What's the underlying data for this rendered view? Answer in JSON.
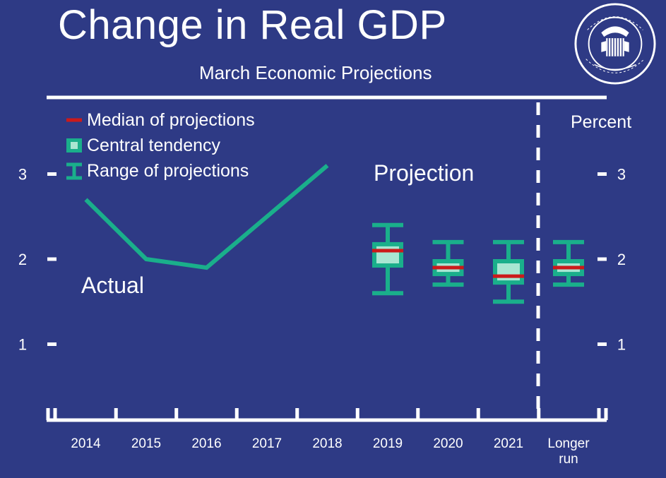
{
  "slide": {
    "title": "Change in Real GDP",
    "subtitle": "March Economic Projections",
    "seal_text": "UNITED STATES · FEDERAL RESERVE SYSTEM"
  },
  "colors": {
    "background": "#2e3a85",
    "teal": "#1aaf8b",
    "light_box": "#a9e6d2",
    "median": "#cc1a1a",
    "white": "#ffffff"
  },
  "chart_data": {
    "type": "line",
    "title": "Change in Real GDP",
    "subtitle": "March Economic Projections",
    "ylabel": "Percent",
    "ylim": [
      0.2,
      3.3
    ],
    "y_ticks": [
      1,
      2,
      3
    ],
    "categories": [
      "2014",
      "2015",
      "2016",
      "2017",
      "2018",
      "2019",
      "2020",
      "2021",
      "Longer run"
    ],
    "legend": [
      {
        "label": "Median of projections",
        "icon": "median-bar"
      },
      {
        "label": "Central tendency",
        "icon": "central-box"
      },
      {
        "label": "Range of projections",
        "icon": "range-bracket"
      }
    ],
    "annotations": {
      "actual": "Actual",
      "projection": "Projection"
    },
    "actual_series": {
      "x": [
        "2014",
        "2015",
        "2016",
        "2017",
        "2018"
      ],
      "values": [
        2.7,
        2.0,
        1.9,
        2.5,
        3.1
      ]
    },
    "projections": [
      {
        "category": "2019",
        "range": [
          1.6,
          2.4
        ],
        "central": [
          1.9,
          2.2
        ],
        "median": 2.1
      },
      {
        "category": "2020",
        "range": [
          1.7,
          2.2
        ],
        "central": [
          1.8,
          2.0
        ],
        "median": 1.9
      },
      {
        "category": "2021",
        "range": [
          1.5,
          2.2
        ],
        "central": [
          1.7,
          2.0
        ],
        "median": 1.8
      },
      {
        "category": "Longer run",
        "range": [
          1.7,
          2.2
        ],
        "central": [
          1.8,
          2.0
        ],
        "median": 1.9
      }
    ]
  }
}
